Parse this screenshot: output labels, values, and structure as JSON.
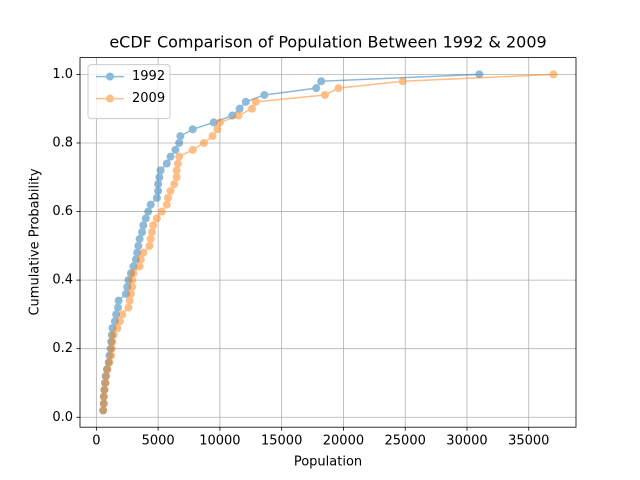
{
  "chart_data": {
    "type": "line",
    "title": "eCDF Comparison of Population Between 1992 & 2009",
    "x_label": "Population",
    "y_label": "Cumulative Probability",
    "xlim": [
      -1325,
      38825
    ],
    "ylim": [
      -0.029,
      1.049
    ],
    "xticks": [
      0,
      5000,
      10000,
      15000,
      20000,
      25000,
      30000,
      35000
    ],
    "yticks": [
      {
        "value": 0.0,
        "label": "0.0"
      },
      0.2,
      0.4,
      0.6,
      0.8,
      {
        "value": 1.0,
        "label": "1.0"
      }
    ],
    "grid": true,
    "legend": "upper left",
    "marker": "circle",
    "alpha": 0.5,
    "series": [
      {
        "name": "1992",
        "color": "#1f77b4",
        "x": [
          550,
          600,
          600,
          650,
          700,
          750,
          850,
          1000,
          1050,
          1150,
          1200,
          1250,
          1300,
          1500,
          1600,
          1750,
          1800,
          2400,
          2500,
          2600,
          2800,
          3000,
          3200,
          3300,
          3400,
          3500,
          3700,
          3800,
          4000,
          4200,
          4400,
          4900,
          5000,
          5000,
          5100,
          5200,
          5700,
          6000,
          6400,
          6700,
          6800,
          7800,
          9500,
          11000,
          11600,
          12100,
          13600,
          17800,
          18200,
          31000
        ],
        "values": [
          0.02,
          0.04,
          0.06,
          0.08,
          0.1,
          0.12,
          0.14,
          0.16,
          0.18,
          0.2,
          0.22,
          0.24,
          0.26,
          0.28,
          0.3,
          0.32,
          0.34,
          0.36,
          0.38,
          0.4,
          0.42,
          0.44,
          0.46,
          0.48,
          0.5,
          0.52,
          0.54,
          0.56,
          0.58,
          0.6,
          0.62,
          0.64,
          0.66,
          0.68,
          0.7,
          0.72,
          0.74,
          0.76,
          0.78,
          0.8,
          0.82,
          0.84,
          0.86,
          0.88,
          0.9,
          0.92,
          0.94,
          0.96,
          0.98,
          1.0
        ]
      },
      {
        "name": "2009",
        "color": "#ff7f0e",
        "x": [
          550,
          600,
          600,
          650,
          750,
          800,
          900,
          1050,
          1200,
          1250,
          1300,
          1400,
          1700,
          1900,
          2100,
          2600,
          2700,
          2800,
          2900,
          2900,
          3000,
          3500,
          3600,
          3800,
          4300,
          4400,
          4500,
          4600,
          4900,
          5300,
          5700,
          5800,
          6000,
          6300,
          6500,
          6500,
          6600,
          6700,
          7800,
          8700,
          9400,
          9800,
          10000,
          11500,
          12600,
          12900,
          18500,
          19600,
          24800,
          37000
        ],
        "values": [
          0.02,
          0.04,
          0.06,
          0.08,
          0.1,
          0.12,
          0.14,
          0.16,
          0.18,
          0.2,
          0.22,
          0.24,
          0.26,
          0.28,
          0.3,
          0.32,
          0.34,
          0.36,
          0.38,
          0.4,
          0.42,
          0.44,
          0.46,
          0.48,
          0.5,
          0.52,
          0.54,
          0.56,
          0.58,
          0.6,
          0.62,
          0.64,
          0.66,
          0.68,
          0.7,
          0.72,
          0.74,
          0.76,
          0.78,
          0.8,
          0.82,
          0.84,
          0.86,
          0.88,
          0.9,
          0.92,
          0.94,
          0.96,
          0.98,
          1.0
        ]
      }
    ]
  }
}
